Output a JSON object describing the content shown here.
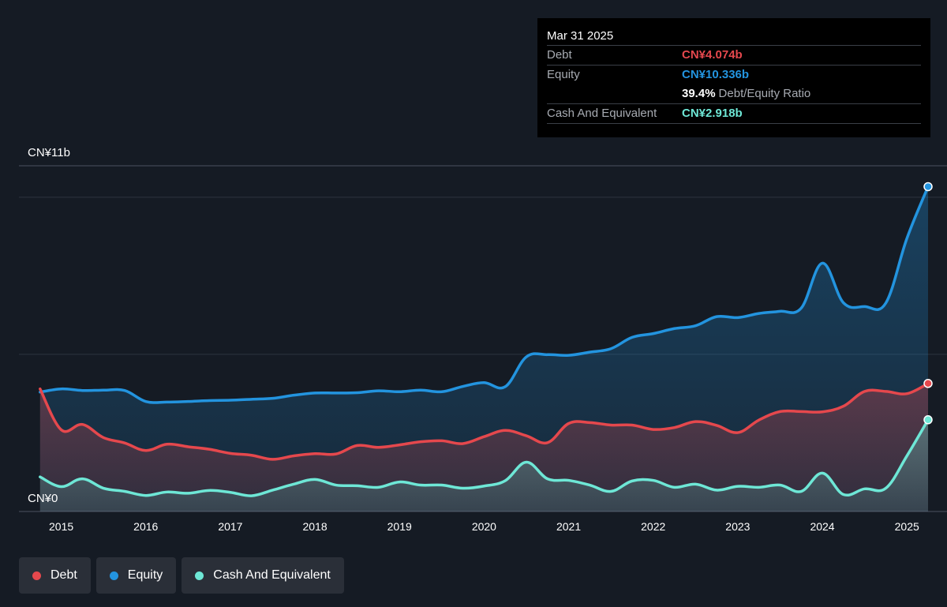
{
  "tooltip": {
    "date": "Mar 31 2025",
    "debt_label": "Debt",
    "debt_value": "CN¥4.074b",
    "equity_label": "Equity",
    "equity_value": "CN¥10.336b",
    "ratio_pct": "39.4%",
    "ratio_label": "Debt/Equity Ratio",
    "cash_label": "Cash And Equivalent",
    "cash_value": "CN¥2.918b"
  },
  "legend": [
    {
      "label": "Debt",
      "color": "#e5484d"
    },
    {
      "label": "Equity",
      "color": "#2394df"
    },
    {
      "label": "Cash And Equivalent",
      "color": "#6ee7d6"
    }
  ],
  "colors": {
    "debt": "#e5484d",
    "equity": "#2394df",
    "cash": "#6ee7d6",
    "background": "#151b24"
  },
  "chart_data": {
    "type": "area",
    "y_top_label": "CN¥11b",
    "y_bottom_label": "CN¥0",
    "ylim": [
      0,
      11
    ],
    "xlim": [
      2014.5,
      2025.25
    ],
    "x_ticks": [
      "2015",
      "2016",
      "2017",
      "2018",
      "2019",
      "2020",
      "2021",
      "2022",
      "2023",
      "2024",
      "2025"
    ],
    "x_tick_values": [
      2015,
      2016,
      2017,
      2018,
      2019,
      2020,
      2021,
      2022,
      2023,
      2024,
      2025
    ],
    "grid": true,
    "legend_position": "bottom-left",
    "series": [
      {
        "name": "Equity",
        "color": "#2394df",
        "points": [
          [
            2014.75,
            3.8
          ],
          [
            2015.0,
            3.9
          ],
          [
            2015.25,
            3.85
          ],
          [
            2015.5,
            3.86
          ],
          [
            2015.75,
            3.85
          ],
          [
            2016.0,
            3.5
          ],
          [
            2016.25,
            3.48
          ],
          [
            2016.5,
            3.5
          ],
          [
            2016.75,
            3.53
          ],
          [
            2017.0,
            3.54
          ],
          [
            2017.25,
            3.57
          ],
          [
            2017.5,
            3.6
          ],
          [
            2017.75,
            3.7
          ],
          [
            2018.0,
            3.77
          ],
          [
            2018.25,
            3.77
          ],
          [
            2018.5,
            3.78
          ],
          [
            2018.75,
            3.84
          ],
          [
            2019.0,
            3.81
          ],
          [
            2019.25,
            3.86
          ],
          [
            2019.5,
            3.81
          ],
          [
            2019.75,
            3.98
          ],
          [
            2020.0,
            4.1
          ],
          [
            2020.25,
            3.97
          ],
          [
            2020.5,
            4.92
          ],
          [
            2020.75,
            4.99
          ],
          [
            2021.0,
            4.97
          ],
          [
            2021.25,
            5.07
          ],
          [
            2021.5,
            5.18
          ],
          [
            2021.75,
            5.54
          ],
          [
            2022.0,
            5.66
          ],
          [
            2022.25,
            5.82
          ],
          [
            2022.5,
            5.91
          ],
          [
            2022.75,
            6.2
          ],
          [
            2023.0,
            6.17
          ],
          [
            2023.25,
            6.3
          ],
          [
            2023.5,
            6.37
          ],
          [
            2023.75,
            6.47
          ],
          [
            2024.0,
            7.9
          ],
          [
            2024.25,
            6.64
          ],
          [
            2024.5,
            6.52
          ],
          [
            2024.75,
            6.63
          ],
          [
            2025.0,
            8.69
          ],
          [
            2025.25,
            10.336
          ]
        ]
      },
      {
        "name": "Debt",
        "color": "#e5484d",
        "points": [
          [
            2014.75,
            3.9
          ],
          [
            2015.0,
            2.6
          ],
          [
            2015.25,
            2.77
          ],
          [
            2015.5,
            2.35
          ],
          [
            2015.75,
            2.18
          ],
          [
            2016.0,
            1.94
          ],
          [
            2016.25,
            2.14
          ],
          [
            2016.5,
            2.06
          ],
          [
            2016.75,
            1.98
          ],
          [
            2017.0,
            1.85
          ],
          [
            2017.25,
            1.79
          ],
          [
            2017.5,
            1.66
          ],
          [
            2017.75,
            1.77
          ],
          [
            2018.0,
            1.84
          ],
          [
            2018.25,
            1.83
          ],
          [
            2018.5,
            2.1
          ],
          [
            2018.75,
            2.04
          ],
          [
            2019.0,
            2.12
          ],
          [
            2019.25,
            2.22
          ],
          [
            2019.5,
            2.25
          ],
          [
            2019.75,
            2.16
          ],
          [
            2020.0,
            2.38
          ],
          [
            2020.25,
            2.58
          ],
          [
            2020.5,
            2.41
          ],
          [
            2020.75,
            2.19
          ],
          [
            2021.0,
            2.8
          ],
          [
            2021.25,
            2.83
          ],
          [
            2021.5,
            2.75
          ],
          [
            2021.75,
            2.75
          ],
          [
            2022.0,
            2.61
          ],
          [
            2022.25,
            2.67
          ],
          [
            2022.5,
            2.86
          ],
          [
            2022.75,
            2.74
          ],
          [
            2023.0,
            2.51
          ],
          [
            2023.25,
            2.91
          ],
          [
            2023.5,
            3.18
          ],
          [
            2023.75,
            3.18
          ],
          [
            2024.0,
            3.17
          ],
          [
            2024.25,
            3.35
          ],
          [
            2024.5,
            3.82
          ],
          [
            2024.75,
            3.82
          ],
          [
            2025.0,
            3.75
          ],
          [
            2025.25,
            4.074
          ]
        ]
      },
      {
        "name": "Cash And Equivalent",
        "color": "#6ee7d6",
        "points": [
          [
            2014.75,
            1.1
          ],
          [
            2015.0,
            0.79
          ],
          [
            2015.25,
            1.04
          ],
          [
            2015.5,
            0.74
          ],
          [
            2015.75,
            0.64
          ],
          [
            2016.0,
            0.51
          ],
          [
            2016.25,
            0.62
          ],
          [
            2016.5,
            0.58
          ],
          [
            2016.75,
            0.67
          ],
          [
            2017.0,
            0.61
          ],
          [
            2017.25,
            0.5
          ],
          [
            2017.5,
            0.68
          ],
          [
            2017.75,
            0.87
          ],
          [
            2018.0,
            1.02
          ],
          [
            2018.25,
            0.84
          ],
          [
            2018.5,
            0.82
          ],
          [
            2018.75,
            0.77
          ],
          [
            2019.0,
            0.94
          ],
          [
            2019.25,
            0.84
          ],
          [
            2019.5,
            0.84
          ],
          [
            2019.75,
            0.74
          ],
          [
            2020.0,
            0.81
          ],
          [
            2020.25,
            0.98
          ],
          [
            2020.5,
            1.57
          ],
          [
            2020.75,
            1.04
          ],
          [
            2021.0,
            0.99
          ],
          [
            2021.25,
            0.84
          ],
          [
            2021.5,
            0.64
          ],
          [
            2021.75,
            0.97
          ],
          [
            2022.0,
            0.99
          ],
          [
            2022.25,
            0.77
          ],
          [
            2022.5,
            0.87
          ],
          [
            2022.75,
            0.68
          ],
          [
            2023.0,
            0.8
          ],
          [
            2023.25,
            0.77
          ],
          [
            2023.5,
            0.84
          ],
          [
            2023.75,
            0.64
          ],
          [
            2024.0,
            1.22
          ],
          [
            2024.25,
            0.54
          ],
          [
            2024.5,
            0.72
          ],
          [
            2024.75,
            0.74
          ],
          [
            2025.0,
            1.77
          ],
          [
            2025.25,
            2.918
          ]
        ]
      }
    ]
  }
}
